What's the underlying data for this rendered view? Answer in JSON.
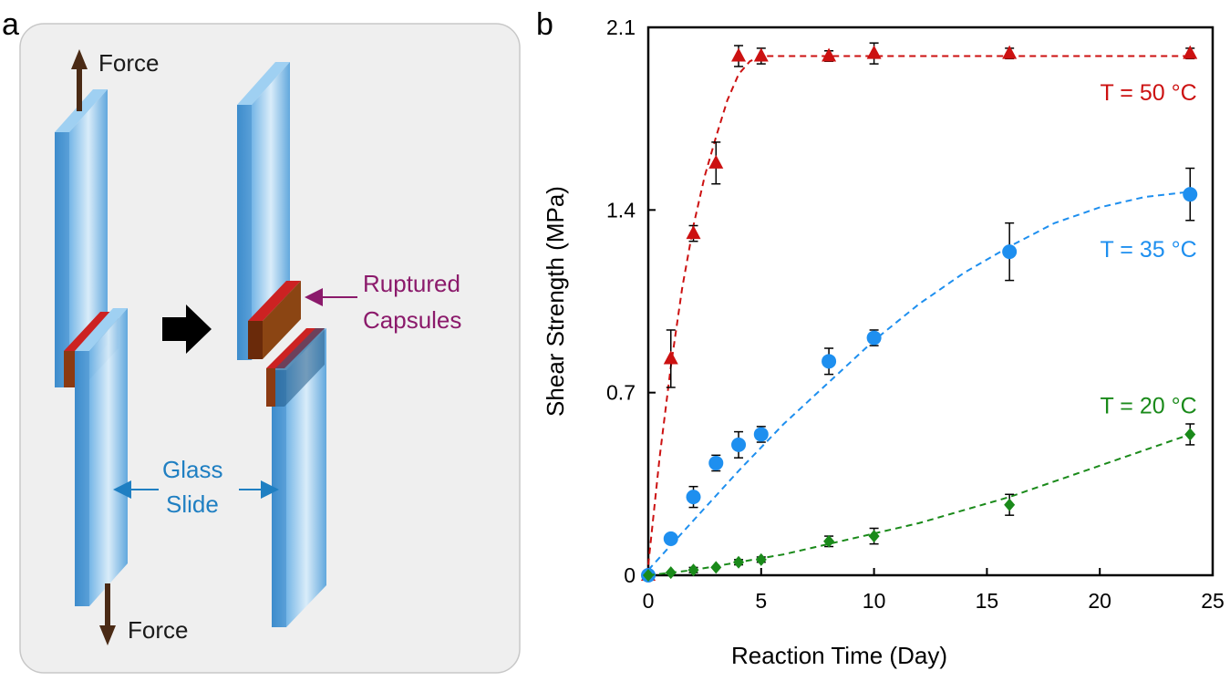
{
  "panel_a": {
    "letter": "a",
    "force_top": "Force",
    "force_bottom": "Force",
    "ruptured_line1": "Ruptured",
    "ruptured_line2": "Capsules",
    "glass_line1": "Glass",
    "glass_line2": "Slide",
    "colors": {
      "panel_bg": "#efefef",
      "glass": "#5ea9e0",
      "capsule_red": "#cc2222",
      "capsule_brown": "#8b4513",
      "force_arrow": "#4a2a15",
      "ruptured_text": "#8b1a6b",
      "glass_text": "#1f7fc2"
    }
  },
  "panel_b": {
    "letter": "b"
  },
  "chart_data": {
    "type": "scatter",
    "title": "",
    "xlabel": "Reaction Time (Day)",
    "ylabel": "Shear Strength (MPa)",
    "xlim": [
      0,
      25
    ],
    "ylim": [
      0,
      2.1
    ],
    "xticks": [
      0,
      5,
      10,
      15,
      20,
      25
    ],
    "yticks": [
      0,
      0.7,
      1.4,
      2.1
    ],
    "ytick_labels": [
      "0",
      "0.7",
      "1.4",
      "2.1"
    ],
    "series": [
      {
        "name": "T = 50 °C",
        "color": "#cc1111",
        "marker": "triangle",
        "x": [
          0,
          1,
          2,
          3,
          4,
          5,
          8,
          10,
          16,
          24
        ],
        "y": [
          0,
          0.83,
          1.31,
          1.58,
          1.99,
          1.99,
          1.99,
          2.0,
          2.0,
          2.0
        ],
        "err": [
          0,
          0.11,
          0.03,
          0.08,
          0.04,
          0.03,
          0.02,
          0.04,
          0.02,
          0.02
        ],
        "fit_x": [
          0,
          0.5,
          1,
          1.5,
          2,
          2.5,
          3,
          3.5,
          4,
          4.5,
          5,
          8,
          10,
          16,
          24
        ],
        "fit_y": [
          0.04,
          0.45,
          0.8,
          1.1,
          1.34,
          1.53,
          1.68,
          1.82,
          1.92,
          1.97,
          1.99,
          1.99,
          1.99,
          1.99,
          1.99
        ]
      },
      {
        "name": "T = 35 °C",
        "color": "#1e8fef",
        "marker": "circle",
        "x": [
          0,
          1,
          2,
          3,
          4,
          5,
          8,
          10,
          16,
          24
        ],
        "y": [
          0,
          0.14,
          0.3,
          0.43,
          0.5,
          0.54,
          0.82,
          0.91,
          1.24,
          1.46
        ],
        "err": [
          0,
          0.01,
          0.04,
          0.03,
          0.05,
          0.03,
          0.05,
          0.03,
          0.11,
          0.1
        ],
        "fit_x": [
          0,
          2,
          4,
          6,
          8,
          10,
          12,
          14,
          16,
          18,
          20,
          22,
          24
        ],
        "fit_y": [
          0.02,
          0.21,
          0.4,
          0.58,
          0.74,
          0.9,
          1.04,
          1.16,
          1.26,
          1.35,
          1.41,
          1.45,
          1.47
        ]
      },
      {
        "name": "T = 20 °C",
        "color": "#1a8a1a",
        "marker": "diamond",
        "x": [
          0,
          1,
          2,
          3,
          4,
          5,
          8,
          10,
          16,
          24
        ],
        "y": [
          0,
          0.01,
          0.02,
          0.03,
          0.05,
          0.06,
          0.13,
          0.15,
          0.27,
          0.54
        ],
        "err": [
          0,
          0,
          0.01,
          0,
          0.01,
          0.01,
          0.02,
          0.03,
          0.04,
          0.04
        ],
        "fit_x": [
          0,
          2,
          4,
          6,
          8,
          10,
          12,
          14,
          16,
          18,
          20,
          22,
          24
        ],
        "fit_y": [
          0.0,
          0.02,
          0.05,
          0.08,
          0.12,
          0.16,
          0.2,
          0.25,
          0.3,
          0.36,
          0.42,
          0.48,
          0.54
        ]
      }
    ]
  }
}
